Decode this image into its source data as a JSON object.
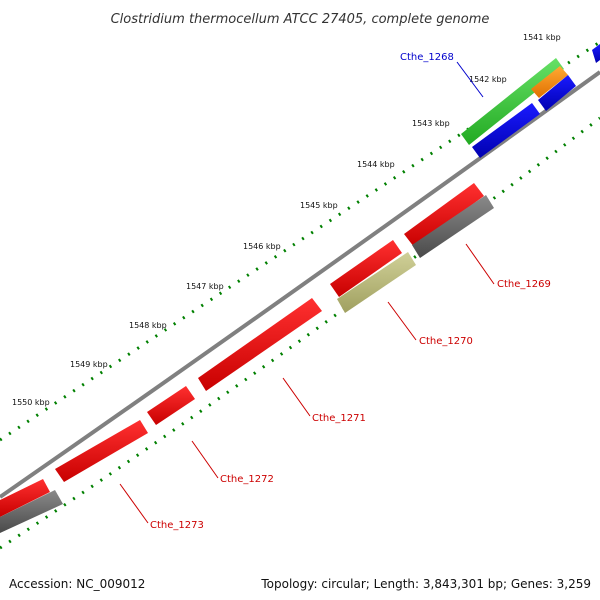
{
  "title": "Clostridium thermocellum ATCC 27405, complete genome",
  "accession_label": "Accession: NC_009012",
  "summary_label": "Topology: circular; Length: 3,843,301 bp; Genes: 3,259",
  "tick_labels": [
    "1541 kbp",
    "1542 kbp",
    "1543 kbp",
    "1544 kbp",
    "1545 kbp",
    "1546 kbp",
    "1547 kbp",
    "1548 kbp",
    "1549 kbp",
    "1550 kbp"
  ],
  "genes": [
    {
      "label": "Cthe_1268",
      "color": "#0000cc"
    },
    {
      "label": "Cthe_1269",
      "color": "#cc0000"
    },
    {
      "label": "Cthe_1270",
      "color": "#cc0000"
    },
    {
      "label": "Cthe_1271",
      "color": "#cc0000"
    },
    {
      "label": "Cthe_1272",
      "color": "#cc0000"
    },
    {
      "label": "Cthe_1273",
      "color": "#cc0000"
    }
  ],
  "colors": {
    "backbone": "#808080",
    "ticks": "#008000",
    "cds_red": "#ff0000",
    "cds_blue": "#0000ee",
    "cds_green": "#33cc33",
    "cds_orange": "#ff8c00",
    "feature_gray": "#666666",
    "feature_olive": "#b8b870"
  }
}
